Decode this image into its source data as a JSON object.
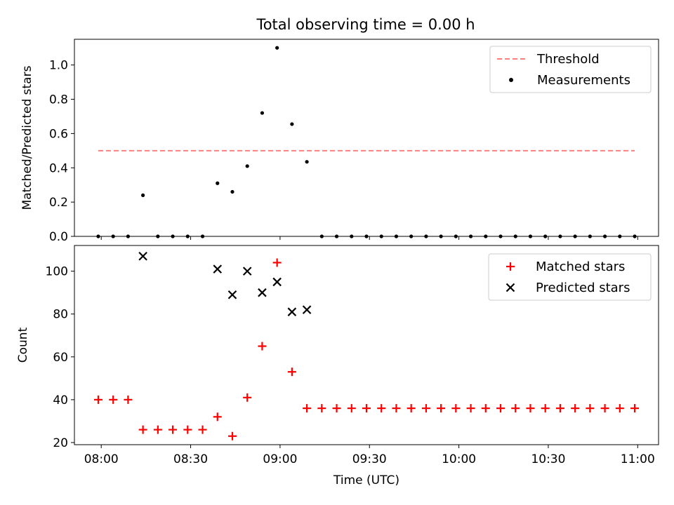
{
  "title": "Total observing time = 0.00 h",
  "chart_data": [
    {
      "type": "scatter",
      "ylabel": "Matched/Predicted stars",
      "ylim": [
        0,
        1.15
      ],
      "yticks": [
        "0.0",
        "0.2",
        "0.4",
        "0.6",
        "0.8",
        "1.0"
      ],
      "grid": false,
      "legend_position": "top-right",
      "threshold": {
        "name": "Threshold",
        "value": 0.5,
        "color": "#ff7f7f",
        "x_start": "07:59",
        "x_end": "10:59"
      },
      "measurements": {
        "name": "Measurements",
        "color": "#000000",
        "x": [
          "07:59",
          "08:04",
          "08:09",
          "08:14",
          "08:19",
          "08:24",
          "08:29",
          "08:34",
          "08:39",
          "08:44",
          "08:49",
          "08:54",
          "08:59",
          "09:04",
          "09:09",
          "09:14",
          "09:19",
          "09:24",
          "09:29",
          "09:34",
          "09:39",
          "09:44",
          "09:49",
          "09:54",
          "09:59",
          "10:04",
          "10:09",
          "10:14",
          "10:19",
          "10:24",
          "10:29",
          "10:34",
          "10:39",
          "10:44",
          "10:49",
          "10:54",
          "10:59"
        ],
        "y": [
          0,
          0,
          0,
          0.24,
          0,
          0,
          0,
          0,
          0.31,
          0.26,
          0.41,
          0.72,
          1.1,
          0.655,
          0.435,
          0,
          0,
          0,
          0,
          0,
          0,
          0,
          0,
          0,
          0,
          0,
          0,
          0,
          0,
          0,
          0,
          0,
          0,
          0,
          0,
          0,
          0
        ]
      }
    },
    {
      "type": "scatter",
      "xlabel": "Time (UTC)",
      "ylabel": "Count",
      "ylim": [
        19,
        112
      ],
      "yticks": [
        "20",
        "40",
        "60",
        "80",
        "100"
      ],
      "xticks": [
        "08:00",
        "08:30",
        "09:00",
        "09:30",
        "10:00",
        "10:30",
        "11:00"
      ],
      "grid": false,
      "legend_position": "top-right",
      "series": [
        {
          "name": "Matched stars",
          "marker": "+",
          "color": "#ff0000",
          "x": [
            "07:59",
            "08:04",
            "08:09",
            "08:14",
            "08:19",
            "08:24",
            "08:29",
            "08:34",
            "08:39",
            "08:44",
            "08:49",
            "08:54",
            "08:59",
            "09:04",
            "09:09",
            "09:14",
            "09:19",
            "09:24",
            "09:29",
            "09:34",
            "09:39",
            "09:44",
            "09:49",
            "09:54",
            "09:59",
            "10:04",
            "10:09",
            "10:14",
            "10:19",
            "10:24",
            "10:29",
            "10:34",
            "10:39",
            "10:44",
            "10:49",
            "10:54",
            "10:59"
          ],
          "y": [
            40,
            40,
            40,
            26,
            26,
            26,
            26,
            26,
            32,
            23,
            41,
            65,
            104,
            53,
            36,
            36,
            36,
            36,
            36,
            36,
            36,
            36,
            36,
            36,
            36,
            36,
            36,
            36,
            36,
            36,
            36,
            36,
            36,
            36,
            36,
            36,
            36
          ]
        },
        {
          "name": "Predicted stars",
          "marker": "x",
          "color": "#000000",
          "x": [
            "08:14",
            "08:39",
            "08:44",
            "08:49",
            "08:54",
            "08:59",
            "09:04",
            "09:09"
          ],
          "y": [
            107,
            101,
            89,
            100,
            90,
            95,
            81,
            82
          ]
        }
      ]
    }
  ]
}
